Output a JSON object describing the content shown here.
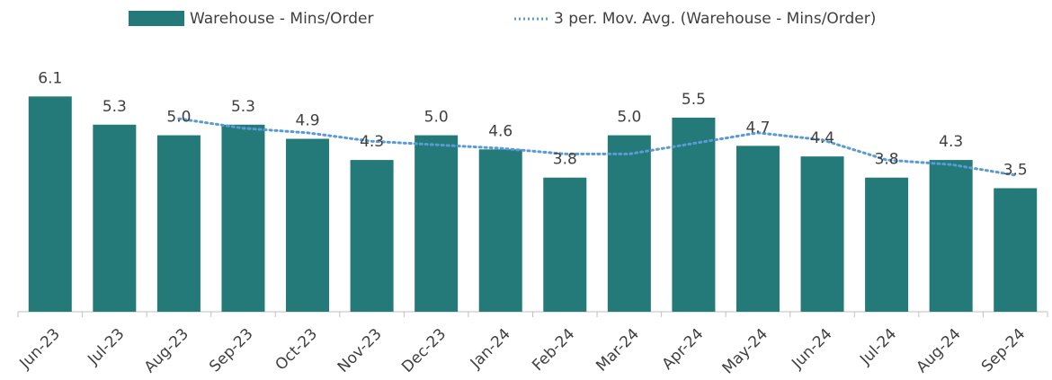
{
  "chart_data": {
    "type": "bar",
    "categories": [
      "Jun-23",
      "Jul-23",
      "Aug-23",
      "Sep-23",
      "Oct-23",
      "Nov-23",
      "Dec-23",
      "Jan-24",
      "Feb-24",
      "Mar-24",
      "Apr-24",
      "May-24",
      "Jun-24",
      "Jul-24",
      "Aug-24",
      "Sep-24"
    ],
    "series": [
      {
        "name": "Warehouse - Mins/Order",
        "color": "#237a78",
        "values": [
          6.1,
          5.3,
          5.0,
          5.3,
          4.9,
          4.3,
          5.0,
          4.6,
          3.8,
          5.0,
          5.5,
          4.7,
          4.4,
          3.8,
          4.3,
          3.5
        ],
        "value_labels": [
          "6.1",
          "5.3",
          "5.0",
          "5.3",
          "4.9",
          "4.3",
          "5.0",
          "4.6",
          "3.8",
          "5.0",
          "5.5",
          "4.7",
          "4.4",
          "3.8",
          "4.3",
          "3.5"
        ]
      },
      {
        "name": "3 per. Mov. Avg. (Warehouse - Mins/Order)",
        "color": "#5b9bd5",
        "type": "line",
        "values": [
          null,
          null,
          5.47,
          5.2,
          5.07,
          4.83,
          4.73,
          4.63,
          4.47,
          4.47,
          4.77,
          5.07,
          4.87,
          4.3,
          4.17,
          3.87
        ]
      }
    ],
    "ylim": [
      0,
      7
    ],
    "legend": "top"
  }
}
